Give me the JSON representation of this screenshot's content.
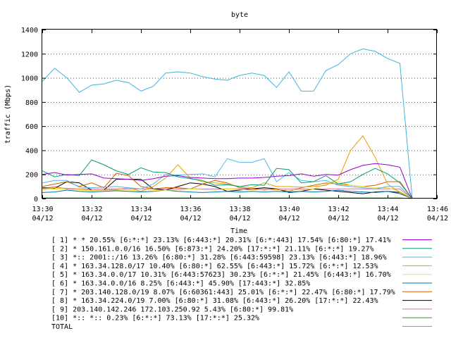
{
  "chart_data": {
    "type": "line",
    "title": "byte",
    "xlabel": "Time",
    "ylabel": "traffic (Mbps)",
    "ylim": [
      0,
      1400
    ],
    "xlim": [
      0,
      16
    ],
    "y_ticks": [
      "0",
      "200",
      "400",
      "600",
      "800",
      "1000",
      "1200",
      "1400"
    ],
    "x_ticks": [
      {
        "time": "13:30",
        "date": "04/12"
      },
      {
        "time": "13:32",
        "date": "04/12"
      },
      {
        "time": "13:34",
        "date": "04/12"
      },
      {
        "time": "13:36",
        "date": "04/12"
      },
      {
        "time": "13:38",
        "date": "04/12"
      },
      {
        "time": "13:40",
        "date": "04/12"
      },
      {
        "time": "13:42",
        "date": "04/12"
      },
      {
        "time": "13:44",
        "date": "04/12"
      },
      {
        "time": "13:46",
        "date": "04/12"
      }
    ],
    "x": [
      0,
      0.5,
      1,
      1.5,
      2,
      2.5,
      3,
      3.5,
      4,
      4.5,
      5,
      5.5,
      6,
      6.5,
      7,
      7.5,
      8,
      8.5,
      9,
      9.5,
      10,
      10.5,
      11,
      11.5,
      12,
      12.5,
      13,
      13.5,
      14,
      14.5,
      15
    ],
    "series": [
      {
        "name": "[ 1] * * 20.55%  [6:*:*] 23.13% [6:443:*] 20.31% [6:*:443] 17.54% [6:80:*] 17.41%",
        "color": "#9400d3",
        "values": [
          200,
          215,
          195,
          200,
          205,
          170,
          165,
          160,
          150,
          165,
          185,
          190,
          175,
          170,
          165,
          165,
          170,
          170,
          175,
          185,
          190,
          205,
          185,
          200,
          195,
          240,
          275,
          290,
          280,
          260,
          0
        ]
      },
      {
        "name": "[ 2] * 150.161.0.0/16 16.50%  [6:873:*] 24.20% [17:*:*] 21.11% [6:*:*] 19.27%",
        "color": "#009e73",
        "values": [
          230,
          180,
          200,
          190,
          320,
          280,
          230,
          200,
          255,
          220,
          215,
          180,
          165,
          150,
          110,
          115,
          100,
          115,
          110,
          250,
          240,
          130,
          140,
          190,
          120,
          140,
          200,
          250,
          205,
          130,
          0
        ]
      },
      {
        "name": "[ 3] *:: 2001::/16 13.26%  [6:80:*] 31.28% [6:443:59598] 23.13% [6:443:*] 18.96%",
        "color": "#56b4e9",
        "values": [
          130,
          150,
          150,
          95,
          90,
          95,
          100,
          90,
          80,
          120,
          200,
          195,
          200,
          205,
          180,
          330,
          300,
          300,
          330,
          140,
          215,
          150,
          140,
          150,
          110,
          100,
          90,
          80,
          100,
          100,
          0
        ]
      },
      {
        "name": "[ 4] * 163.34.128.0/17 10.40%  [6:80:*] 62.55% [6:443:*] 15.72% [6:*:*] 12.53%",
        "color": "#e69f00",
        "values": [
          80,
          90,
          85,
          80,
          70,
          70,
          75,
          90,
          60,
          100,
          170,
          280,
          170,
          140,
          130,
          120,
          100,
          90,
          130,
          100,
          100,
          95,
          100,
          110,
          160,
          400,
          520,
          340,
          120,
          50,
          0
        ]
      },
      {
        "name": "[ 5] * 163.34.0.0/17 10.31%  [6:443:57623] 30.23% [6:*:*] 21.45% [6:443:*] 16.70%",
        "color": "#f0e442",
        "values": [
          70,
          80,
          75,
          70,
          65,
          70,
          70,
          70,
          60,
          65,
          70,
          70,
          80,
          75,
          70,
          80,
          75,
          70,
          75,
          70,
          75,
          70,
          80,
          120,
          140,
          110,
          100,
          90,
          90,
          60,
          0
        ]
      },
      {
        "name": "[ 6] * 163.34.0.0/16 8.25%  [6:443:*] 45.90% [17:443:*] 32.85%",
        "color": "#0072b2",
        "values": [
          50,
          55,
          70,
          60,
          55,
          60,
          65,
          60,
          55,
          60,
          70,
          60,
          55,
          50,
          55,
          60,
          55,
          60,
          55,
          60,
          55,
          60,
          55,
          60,
          70,
          60,
          55,
          50,
          60,
          40,
          0
        ]
      },
      {
        "name": "[ 7] * 203.140.128.0/19 8.07%  [6:60361:443] 25.01% [6:*:*] 22.47% [6:80:*] 17.79%",
        "color": "#d55e00",
        "values": [
          100,
          120,
          140,
          100,
          130,
          90,
          210,
          190,
          100,
          80,
          90,
          90,
          80,
          120,
          150,
          130,
          90,
          80,
          70,
          80,
          60,
          90,
          110,
          130,
          120,
          110,
          100,
          110,
          140,
          140,
          0
        ]
      },
      {
        "name": "[ 8] * 163.34.224.0/19 7.00%  [6:80:*] 31.08% [6:443:*] 26.20% [17:*:*] 22.43%",
        "color": "#000000",
        "values": [
          90,
          85,
          140,
          130,
          70,
          70,
          160,
          160,
          160,
          80,
          70,
          100,
          130,
          120,
          100,
          60,
          70,
          80,
          90,
          80,
          50,
          60,
          80,
          70,
          60,
          50,
          40,
          55,
          60,
          50,
          0
        ]
      },
      {
        "name": "[ 9] 203.140.142.246 172.103.250.92 5.43%  [6:80:*] 99.81%",
        "color": "#cc79a7",
        "values": [
          80,
          100,
          80,
          80,
          80,
          80,
          80,
          80,
          80,
          80,
          80,
          80,
          80,
          80,
          80,
          80,
          80,
          80,
          80,
          80,
          80,
          80,
          80,
          80,
          80,
          80,
          80,
          80,
          80,
          80,
          0
        ]
      },
      {
        "name": "[10] *:: *:: 0.23%  [6:*:*] 73.13% [17:*:*] 25.32%",
        "color": "#2ca02c",
        "values": [
          5,
          5,
          5,
          5,
          5,
          5,
          5,
          5,
          5,
          5,
          5,
          5,
          5,
          5,
          5,
          5,
          5,
          5,
          5,
          5,
          5,
          5,
          5,
          5,
          5,
          5,
          5,
          5,
          5,
          5,
          0
        ]
      },
      {
        "name": "TOTAL",
        "color": "#3fb3e0",
        "values": [
          970,
          1080,
          1000,
          880,
          940,
          950,
          980,
          960,
          890,
          930,
          1040,
          1050,
          1040,
          1010,
          990,
          980,
          1020,
          1040,
          1020,
          920,
          1050,
          890,
          890,
          1060,
          1110,
          1200,
          1240,
          1220,
          1160,
          1120,
          0
        ]
      }
    ]
  }
}
